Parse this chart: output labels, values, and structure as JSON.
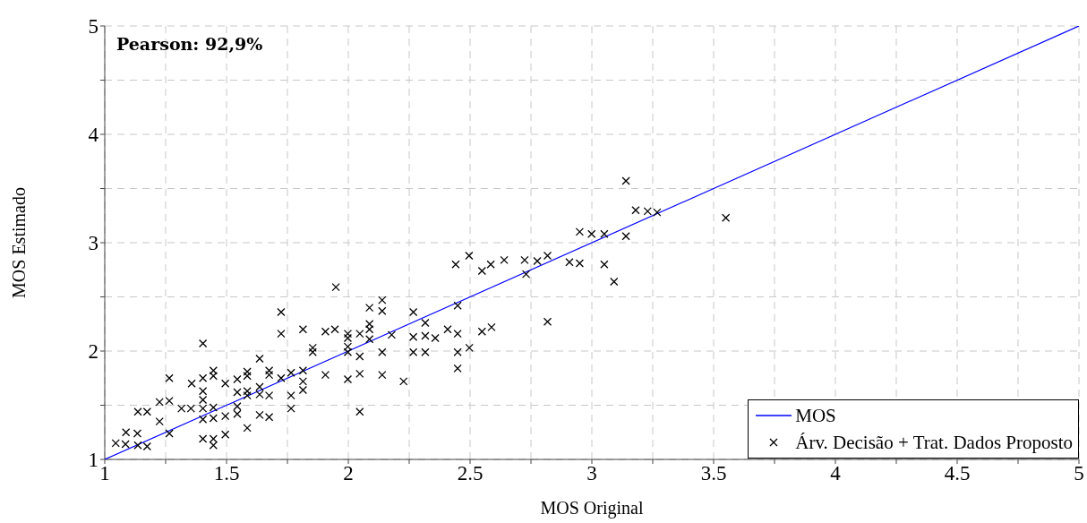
{
  "chart_data": {
    "type": "scatter",
    "xlabel": "MOS Original",
    "ylabel": "MOS Estimado",
    "annotations": [
      "Pearson: 92,9%"
    ],
    "xlim": [
      1,
      5
    ],
    "ylim": [
      1,
      5
    ],
    "xticks": [
      1,
      {
        "value": 1.25,
        "label": null
      },
      1.5,
      {
        "value": 1.75,
        "label": null
      },
      2,
      {
        "value": 2.25,
        "label": null
      },
      2.5,
      {
        "value": 2.75,
        "label": null
      },
      3,
      {
        "value": 3.25,
        "label": null
      },
      3.5,
      {
        "value": 3.75,
        "label": null
      },
      4,
      {
        "value": 4.25,
        "label": null
      },
      4.5,
      {
        "value": 4.75,
        "label": null
      },
      5
    ],
    "yticks": [
      1,
      {
        "value": 1.5,
        "label": null
      },
      2,
      {
        "value": 2.5,
        "label": null
      },
      3,
      {
        "value": 3.5,
        "label": null
      },
      4,
      {
        "value": 4.5,
        "label": null
      },
      5
    ],
    "grid": true,
    "legend": "bottom right",
    "series": [
      {
        "name": "MOS",
        "type": "line",
        "color": "#0000ff",
        "marker": "none",
        "x": [
          1,
          5
        ],
        "values": [
          1,
          5
        ]
      },
      {
        "name": "Árv. Decisão + Trat. Dados Proposto",
        "type": "scatter",
        "color": "#000000",
        "marker": "cross",
        "x": [
          1.045,
          1.085,
          1.087,
          1.134,
          1.136,
          1.174,
          1.136,
          1.174,
          1.225,
          1.225,
          1.265,
          1.265,
          1.265,
          1.315,
          1.354,
          1.357,
          1.403,
          1.403,
          1.403,
          1.403,
          1.403,
          1.403,
          1.403,
          1.446,
          1.446,
          1.446,
          1.446,
          1.446,
          1.446,
          1.495,
          1.495,
          1.495,
          1.544,
          1.544,
          1.544,
          1.544,
          1.585,
          1.585,
          1.585,
          1.585,
          1.585,
          1.636,
          1.636,
          1.636,
          1.636,
          1.675,
          1.675,
          1.675,
          1.675,
          1.724,
          1.724,
          1.724,
          1.765,
          1.765,
          1.765,
          1.814,
          1.814,
          1.814,
          1.814,
          1.854,
          1.854,
          1.906,
          1.906,
          1.949,
          1.945,
          1.998,
          1.998,
          1.998,
          1.998,
          1.998,
          2.047,
          2.047,
          2.047,
          2.047,
          2.087,
          2.087,
          2.087,
          2.087,
          2.139,
          2.139,
          2.139,
          2.139,
          2.178,
          2.227,
          2.267,
          2.267,
          2.267,
          2.316,
          2.316,
          2.316,
          2.357,
          2.408,
          2.449,
          2.449,
          2.449,
          2.449,
          2.497,
          2.549,
          2.588,
          2.549,
          2.73,
          2.818,
          3.14,
          3.18,
          3.229,
          3.268,
          3.55,
          2.95,
          2.999,
          3.051,
          3.14,
          2.818,
          2.776,
          2.908,
          2.95,
          3.051,
          3.091,
          2.441,
          2.496,
          2.585,
          2.64,
          2.724
        ],
        "values": [
          1.15,
          1.14,
          1.25,
          1.24,
          1.13,
          1.12,
          1.44,
          1.44,
          1.35,
          1.53,
          1.54,
          1.75,
          1.24,
          1.47,
          1.47,
          1.7,
          2.07,
          1.75,
          1.63,
          1.55,
          1.47,
          1.37,
          1.19,
          1.82,
          1.77,
          1.48,
          1.38,
          1.19,
          1.13,
          1.7,
          1.4,
          1.23,
          1.74,
          1.62,
          1.49,
          1.42,
          1.81,
          1.77,
          1.63,
          1.59,
          1.29,
          1.93,
          1.67,
          1.6,
          1.41,
          1.82,
          1.78,
          1.59,
          1.39,
          2.36,
          2.16,
          1.75,
          1.8,
          1.59,
          1.47,
          2.2,
          1.82,
          1.72,
          1.64,
          2.03,
          1.99,
          2.18,
          1.78,
          2.59,
          2.2,
          2.16,
          2.12,
          2.04,
          1.99,
          1.74,
          2.16,
          1.95,
          1.79,
          1.44,
          2.4,
          2.25,
          2.2,
          2.11,
          2.47,
          2.37,
          1.99,
          1.78,
          2.15,
          1.72,
          2.36,
          2.13,
          1.99,
          2.26,
          2.14,
          1.99,
          2.12,
          2.2,
          2.42,
          2.16,
          1.99,
          1.84,
          2.03,
          2.18,
          2.22,
          2.74,
          2.71,
          2.27,
          3.57,
          3.3,
          3.29,
          3.28,
          3.23,
          3.1,
          3.08,
          3.08,
          3.06,
          2.88,
          2.83,
          2.82,
          2.81,
          2.8,
          2.64,
          2.8,
          2.88,
          2.8,
          2.84,
          2.84
        ]
      }
    ]
  }
}
